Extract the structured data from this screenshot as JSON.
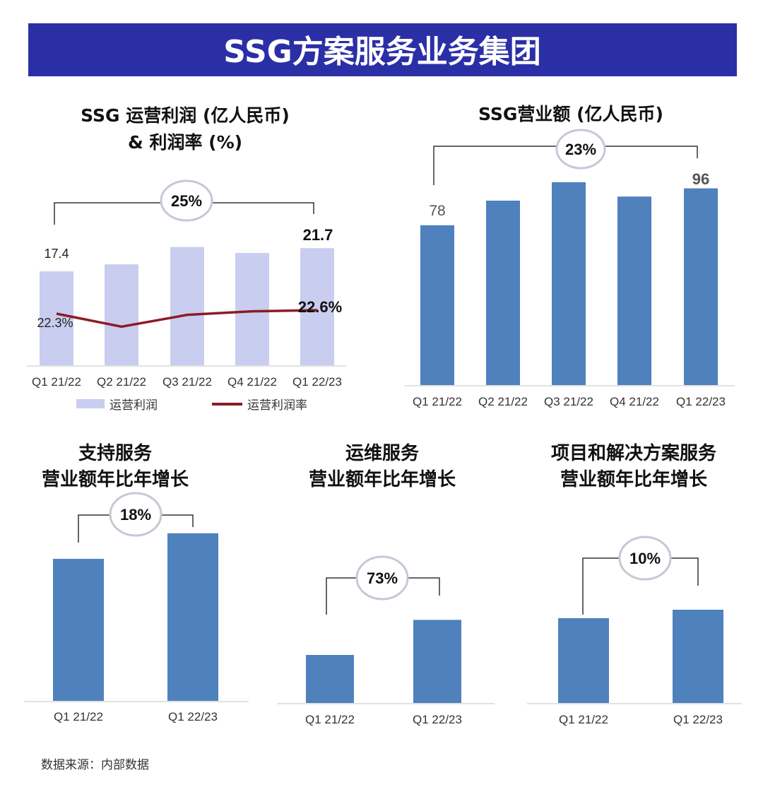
{
  "header": {
    "title": "SSG方案服务业务集团",
    "bg_color": "#2b2fa6"
  },
  "footer": {
    "source": "数据来源：内部数据"
  },
  "chart_data": [
    {
      "type": "bar+line",
      "title_lines": [
        "SSG 运营利润 (亿人民币)",
        "& 利润率 (%)"
      ],
      "categories": [
        "Q1 21/22",
        "Q2 21/22",
        "Q3 21/22",
        "Q4 21/22",
        "Q1 22/23"
      ],
      "series": [
        {
          "name": "运营利润",
          "type": "bar",
          "values": [
            17.4,
            18.7,
            21.9,
            20.8,
            21.7
          ],
          "color": "#c9cdef"
        },
        {
          "name": "运营利润率",
          "type": "line",
          "values": [
            22.3,
            21.2,
            22.2,
            22.5,
            22.6
          ],
          "color": "#8b1c24"
        }
      ],
      "data_labels": {
        "first_bar": "17.4",
        "last_bar": "21.7",
        "first_line": "22.3%",
        "last_line": "22.6%"
      },
      "growth": "25%",
      "legend": "bottom"
    },
    {
      "type": "bar",
      "title_lines": [
        "SSG营业额 (亿人民币)"
      ],
      "categories": [
        "Q1 21/22",
        "Q2 21/22",
        "Q3 21/22",
        "Q4 21/22",
        "Q1 22/23"
      ],
      "values": [
        78,
        90,
        99,
        92,
        96
      ],
      "color": "#4f81bd",
      "data_labels": {
        "first_bar": "78",
        "last_bar": "96"
      },
      "growth": "23%"
    },
    {
      "type": "bar",
      "title_lines": [
        "支持服务",
        "营业额年比年增长"
      ],
      "categories": [
        "Q1 21/22",
        "Q1 22/23"
      ],
      "values": [
        100,
        118
      ],
      "color": "#4f81bd",
      "growth": "18%"
    },
    {
      "type": "bar",
      "title_lines": [
        "运维服务",
        "营业额年比年增长"
      ],
      "categories": [
        "Q1 21/22",
        "Q1 22/23"
      ],
      "values": [
        100,
        173
      ],
      "color": "#4f81bd",
      "growth": "73%"
    },
    {
      "type": "bar",
      "title_lines": [
        "项目和解决方案服务",
        "营业额年比年增长"
      ],
      "categories": [
        "Q1 21/22",
        "Q1 22/23"
      ],
      "values": [
        100,
        110
      ],
      "color": "#4f81bd",
      "growth": "10%"
    }
  ]
}
